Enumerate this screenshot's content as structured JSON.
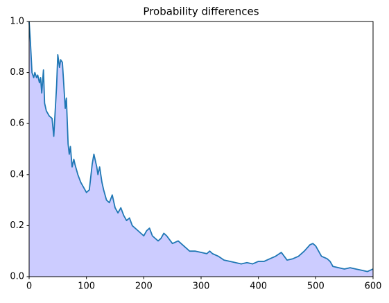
{
  "chart_data": {
    "type": "area",
    "title": "Probability differences",
    "x": [
      0,
      2,
      5,
      8,
      10,
      13,
      15,
      18,
      20,
      22,
      25,
      27,
      30,
      35,
      40,
      43,
      45,
      48,
      50,
      53,
      55,
      58,
      60,
      63,
      65,
      68,
      70,
      72,
      75,
      78,
      80,
      85,
      90,
      95,
      100,
      105,
      110,
      113,
      118,
      120,
      123,
      127,
      130,
      135,
      140,
      145,
      150,
      155,
      160,
      165,
      170,
      175,
      180,
      190,
      200,
      205,
      210,
      215,
      225,
      230,
      235,
      240,
      250,
      260,
      270,
      280,
      290,
      300,
      310,
      315,
      320,
      330,
      340,
      350,
      360,
      370,
      380,
      390,
      400,
      410,
      420,
      430,
      440,
      445,
      450,
      460,
      470,
      480,
      490,
      495,
      500,
      510,
      520,
      525,
      530,
      540,
      550,
      560,
      570,
      580,
      590,
      595,
      600
    ],
    "values": [
      1.0,
      0.93,
      0.8,
      0.78,
      0.8,
      0.78,
      0.79,
      0.76,
      0.78,
      0.72,
      0.81,
      0.68,
      0.65,
      0.63,
      0.62,
      0.55,
      0.63,
      0.75,
      0.87,
      0.82,
      0.85,
      0.84,
      0.77,
      0.66,
      0.7,
      0.52,
      0.48,
      0.51,
      0.43,
      0.46,
      0.44,
      0.4,
      0.37,
      0.35,
      0.33,
      0.34,
      0.44,
      0.48,
      0.43,
      0.4,
      0.43,
      0.37,
      0.34,
      0.3,
      0.29,
      0.32,
      0.27,
      0.25,
      0.27,
      0.24,
      0.22,
      0.23,
      0.2,
      0.18,
      0.16,
      0.18,
      0.19,
      0.16,
      0.14,
      0.15,
      0.17,
      0.16,
      0.13,
      0.14,
      0.12,
      0.1,
      0.1,
      0.095,
      0.09,
      0.1,
      0.09,
      0.08,
      0.065,
      0.06,
      0.055,
      0.05,
      0.055,
      0.05,
      0.06,
      0.06,
      0.07,
      0.08,
      0.095,
      0.08,
      0.065,
      0.07,
      0.08,
      0.1,
      0.125,
      0.13,
      0.12,
      0.08,
      0.07,
      0.06,
      0.04,
      0.035,
      0.03,
      0.035,
      0.03,
      0.025,
      0.02,
      0.025,
      0.03
    ],
    "color": "#1f77b4",
    "fill_color": "#ccccff",
    "xlim": [
      0,
      600
    ],
    "xticks": [
      0,
      100,
      200,
      300,
      400,
      500,
      600
    ],
    "ylim": [
      0,
      1
    ],
    "yticks": [
      {
        "value": 0,
        "label": "0.0"
      },
      0.2,
      0.4,
      0.6,
      0.8,
      {
        "value": 1,
        "label": "1.0"
      }
    ]
  }
}
